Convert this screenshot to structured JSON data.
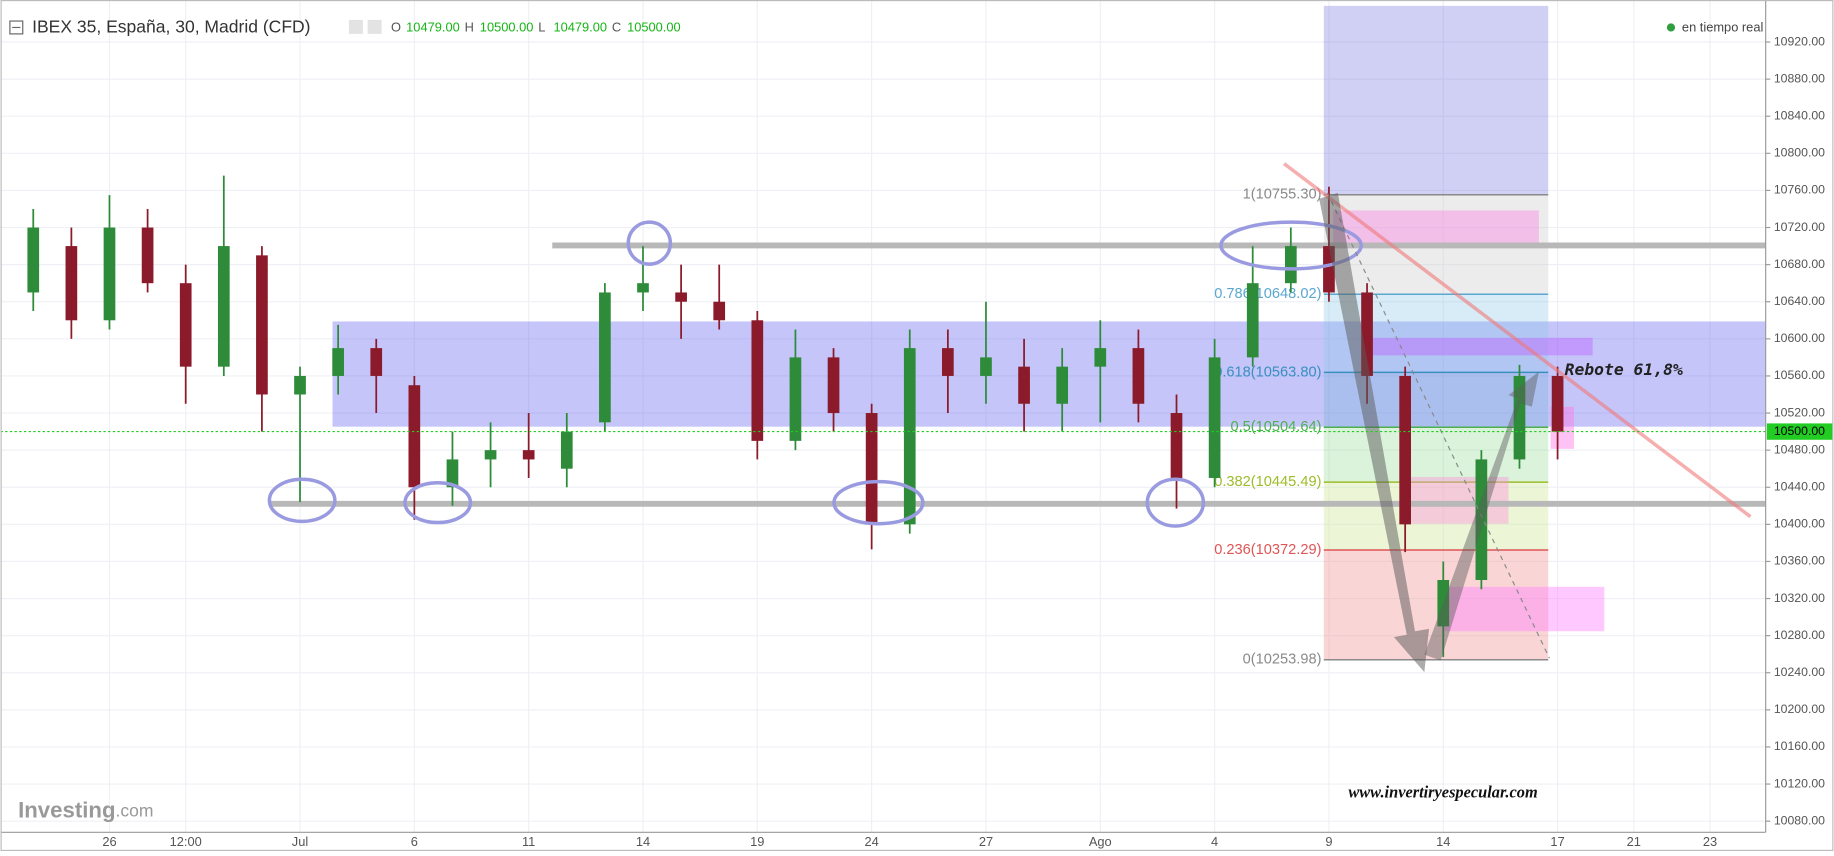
{
  "chart_data": {
    "type": "candlestick",
    "title": "IBEX 35, España, 30, Madrid (CFD)",
    "quote": [
      {
        "label": "O",
        "value": "10479.00"
      },
      {
        "label": "H",
        "value": "10500.00"
      },
      {
        "label": "L",
        "value": "10479.00"
      },
      {
        "label": "C",
        "value": "10500.00"
      }
    ],
    "status": "en tiempo real",
    "logo": [
      "Investing",
      ".com"
    ],
    "categories": [
      null,
      null,
      "26",
      null,
      "12:00",
      null,
      null,
      "Jul",
      null,
      null,
      "6",
      null,
      null,
      "11",
      null,
      null,
      "14",
      null,
      null,
      "19",
      null,
      null,
      "24",
      null,
      null,
      "27",
      null,
      null,
      "Ago",
      null,
      null,
      "4",
      null,
      null,
      "9",
      null,
      null,
      "14",
      null,
      null,
      "17",
      null,
      "21",
      null,
      "23"
    ],
    "open": [
      10650,
      10700,
      10620,
      10720,
      10660,
      10570,
      10690,
      10540,
      10560,
      10590,
      10550,
      10440,
      10470,
      10480,
      10460,
      10510,
      10650,
      10650,
      10640,
      10620,
      10490,
      10580,
      10520,
      10400,
      10590,
      10560,
      10570,
      10530,
      10570,
      10590,
      10520,
      10450,
      10580,
      10660,
      10700,
      10650,
      10560,
      10290,
      10340,
      10470,
      10560,
      null,
      null,
      null,
      null
    ],
    "high": [
      10740,
      10720,
      10755,
      10740,
      10680,
      10776,
      10700,
      10570,
      10615,
      10600,
      10560,
      10500,
      10510,
      10520,
      10520,
      10660,
      10700,
      10680,
      10680,
      10630,
      10610,
      10590,
      10530,
      10610,
      10610,
      10640,
      10600,
      10590,
      10620,
      10610,
      10540,
      10600,
      10700,
      10720,
      10764,
      10660,
      10570,
      10360,
      10480,
      10572,
      10570,
      null,
      null,
      null,
      null
    ],
    "low": [
      10630,
      10600,
      10610,
      10650,
      10530,
      10560,
      10500,
      10424,
      10540,
      10520,
      10405,
      10420,
      10440,
      10450,
      10440,
      10500,
      10630,
      10600,
      10610,
      10470,
      10480,
      10500,
      10373,
      10390,
      10520,
      10530,
      10500,
      10500,
      10510,
      10510,
      10417,
      10440,
      10570,
      10650,
      10640,
      10530,
      10370,
      10257,
      10330,
      10460,
      10470,
      null,
      null,
      null,
      null
    ],
    "close": [
      10720,
      10620,
      10720,
      10660,
      10570,
      10700,
      10540,
      10560,
      10590,
      10560,
      10440,
      10470,
      10480,
      10470,
      10500,
      10650,
      10660,
      10640,
      10620,
      10490,
      10580,
      10520,
      10400,
      10590,
      10560,
      10580,
      10530,
      10570,
      10590,
      10530,
      10450,
      10580,
      10660,
      10700,
      10650,
      10560,
      10400,
      10340,
      10470,
      10560,
      10500,
      null,
      null,
      null,
      null
    ],
    "up_color": "#2e8b3a",
    "down_color": "#8b1a2a",
    "ylim": [
      10068,
      10959
    ],
    "yticks": [
      {
        "value": 10080,
        "label": "10080.00"
      },
      {
        "value": 10120,
        "label": "10120.00"
      },
      {
        "value": 10160,
        "label": "10160.00"
      },
      {
        "value": 10200,
        "label": "10200.00"
      },
      {
        "value": 10240,
        "label": "10240.00"
      },
      {
        "value": 10280,
        "label": "10280.00"
      },
      {
        "value": 10320,
        "label": "10320.00"
      },
      {
        "value": 10360,
        "label": "10360.00"
      },
      {
        "value": 10400,
        "label": "10400.00"
      },
      {
        "value": 10440,
        "label": "10440.00"
      },
      {
        "value": 10480,
        "label": "10480.00"
      },
      {
        "value": 10520,
        "label": "10520.00"
      },
      {
        "value": 10560,
        "label": "10560.00"
      },
      {
        "value": 10600,
        "label": "10600.00"
      },
      {
        "value": 10640,
        "label": "10640.00"
      },
      {
        "value": 10680,
        "label": "10680.00"
      },
      {
        "value": 10720,
        "label": "10720.00"
      },
      {
        "value": 10760,
        "label": "10760.00"
      },
      {
        "value": 10800,
        "label": "10800.00"
      },
      {
        "value": 10840,
        "label": "10840.00"
      },
      {
        "value": 10880,
        "label": "10880.00"
      },
      {
        "value": 10920,
        "label": "10920.00"
      }
    ],
    "grid": true,
    "last_price": {
      "value": 10500,
      "label": "10500.00",
      "color": "#22cc22"
    },
    "fib_levels": [
      {
        "value": 10755.3,
        "label": "1(10755.30)",
        "color": "#8a8a8a"
      },
      {
        "value": 10648.02,
        "label": "0.786(10648.02)",
        "color": "#5aa7d0"
      },
      {
        "value": 10563.8,
        "label": "0.618(10563.80)",
        "color": "#3a8fc0"
      },
      {
        "value": 10504.64,
        "label": "0.5(10504.64)",
        "color": "#4caf50"
      },
      {
        "value": 10445.49,
        "label": "0.382(10445.49)",
        "color": "#9cbd2b"
      },
      {
        "value": 10372.29,
        "label": "0.236(10372.29)",
        "color": "#e05555"
      },
      {
        "value": 10253.98,
        "label": "0(10253.98)",
        "color": "#8a8a8a"
      }
    ],
    "annotations": [
      "Rebote 61,8%",
      "www.invertiryespecular.com"
    ]
  }
}
